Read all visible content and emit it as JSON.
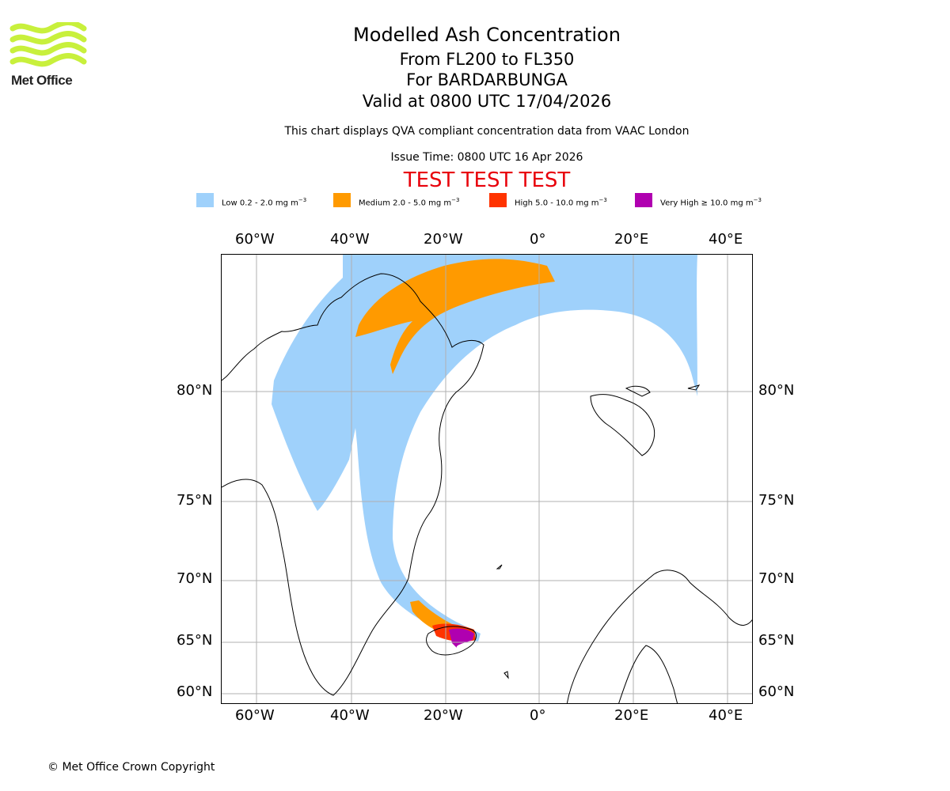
{
  "header": {
    "title": "Modelled Ash Concentration",
    "levels": "From FL200 to FL350",
    "volcano": "For BARDARBUNGA",
    "valid": "Valid at 0800 UTC 17/04/2026",
    "description": "This chart displays QVA compliant concentration data from VAAC London",
    "issue": "Issue Time: 0800 UTC 16 Apr 2026",
    "test_banner": "TEST TEST TEST"
  },
  "logo": {
    "text": "Met Office",
    "color": "#c8f03c"
  },
  "legend": [
    {
      "label": "Low 0.2 - 2.0 mg m",
      "unit_exp": "−3",
      "color": "#9fd1fb"
    },
    {
      "label": "Medium 2.0 - 5.0 mg m",
      "unit_exp": "−3",
      "color": "#ff9a00"
    },
    {
      "label": "High 5.0 - 10.0 mg m",
      "unit_exp": "−3",
      "color": "#ff3300"
    },
    {
      "label": "Very High ≥ 10.0 mg m",
      "unit_exp": "−3",
      "color": "#b000b0"
    }
  ],
  "map": {
    "lon_labels_top": [
      "60°W",
      "40°W",
      "20°W",
      "0°",
      "20°E",
      "40°E"
    ],
    "lon_labels_bottom": [
      "60°W",
      "40°W",
      "20°W",
      "0°",
      "20°E",
      "40°E"
    ],
    "lat_labels_left": [
      "80°N",
      "75°N",
      "70°N",
      "65°N",
      "60°N"
    ],
    "lat_labels_right": [
      "80°N",
      "75°N",
      "70°N",
      "65°N",
      "60°N"
    ],
    "gridlines": true,
    "coast_color": "#000000",
    "grid_color": "#b0b0b0"
  },
  "footer": {
    "copyright": "© Met Office Crown Copyright"
  }
}
